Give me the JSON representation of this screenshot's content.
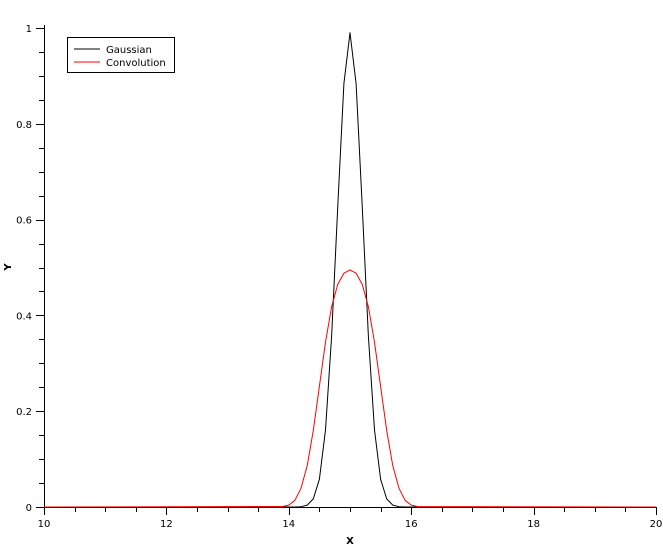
{
  "chart_data": {
    "type": "line",
    "title": "",
    "xlabel": "X",
    "ylabel": "Y",
    "xlim": [
      10,
      20
    ],
    "ylim": [
      0,
      1
    ],
    "xticks": [
      "10",
      "12",
      "14",
      "16",
      "18",
      "20"
    ],
    "yticks": [
      "0",
      "0.2",
      "0.4",
      "0.6",
      "0.8",
      "1"
    ],
    "xtick_values": [
      10,
      12,
      14,
      16,
      18,
      20
    ],
    "ytick_values": [
      0,
      0.2,
      0.4,
      0.6,
      0.8,
      1
    ],
    "x_minor_step": 0.5,
    "y_minor_step": 0.05,
    "grid": false,
    "legend_position": "top-left",
    "x": [
      10,
      13.9,
      14.0,
      14.1,
      14.2,
      14.3,
      14.4,
      14.5,
      14.6,
      14.7,
      14.8,
      14.9,
      15.0,
      15.1,
      15.2,
      15.3,
      15.4,
      15.5,
      15.6,
      15.7,
      15.8,
      15.9,
      16.0,
      16.1,
      20
    ],
    "series": [
      {
        "name": "Gaussian",
        "color": "#000000",
        "values": [
          0,
          0,
          0,
          0,
          0.0007,
          0.004,
          0.017,
          0.058,
          0.161,
          0.356,
          0.629,
          0.884,
          0.99,
          0.884,
          0.629,
          0.356,
          0.161,
          0.058,
          0.017,
          0.004,
          0.0007,
          0,
          0,
          0,
          0
        ]
      },
      {
        "name": "Convolution",
        "color": "#ff0000",
        "values": [
          0,
          0.001,
          0.004,
          0.014,
          0.039,
          0.086,
          0.16,
          0.252,
          0.344,
          0.418,
          0.465,
          0.488,
          0.495,
          0.488,
          0.465,
          0.418,
          0.344,
          0.252,
          0.16,
          0.086,
          0.039,
          0.014,
          0.004,
          0.001,
          0
        ]
      }
    ]
  }
}
